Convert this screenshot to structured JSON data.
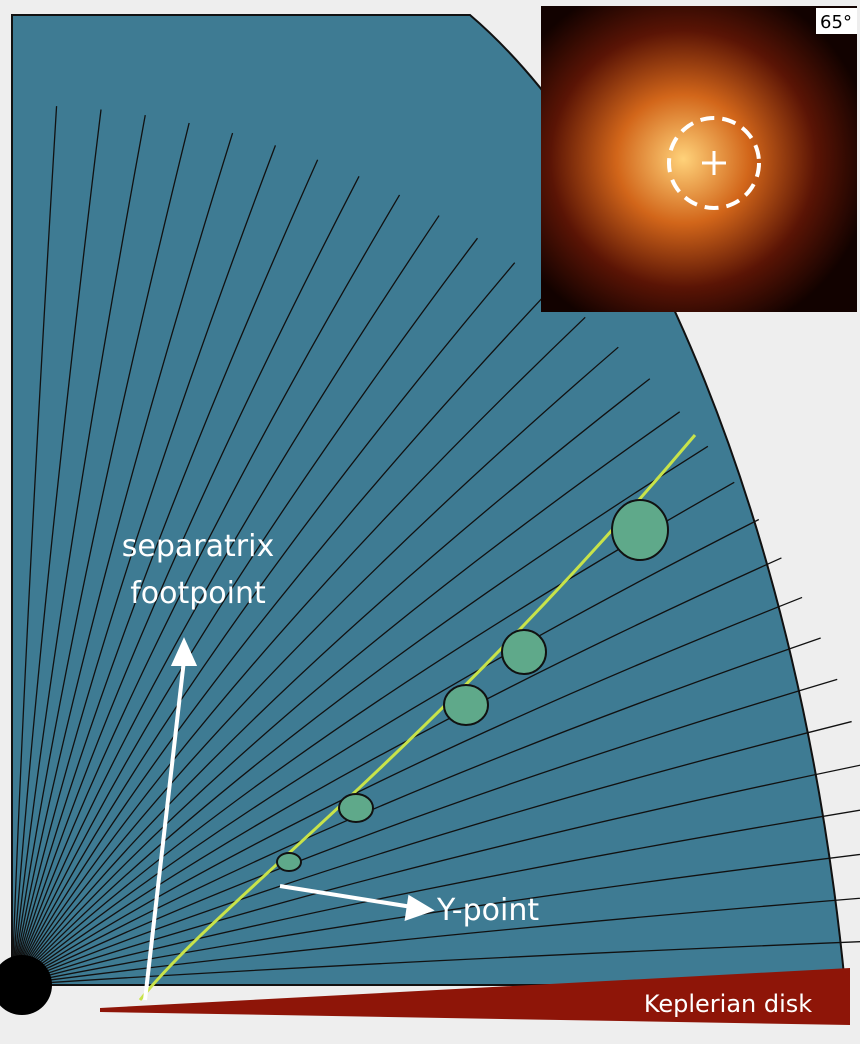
{
  "annotations": {
    "separatrix": [
      "separatrix",
      "footpoint"
    ],
    "y_point": "Y-point",
    "disk": "Keplerian disk"
  },
  "inset": {
    "angle": "65°"
  }
}
